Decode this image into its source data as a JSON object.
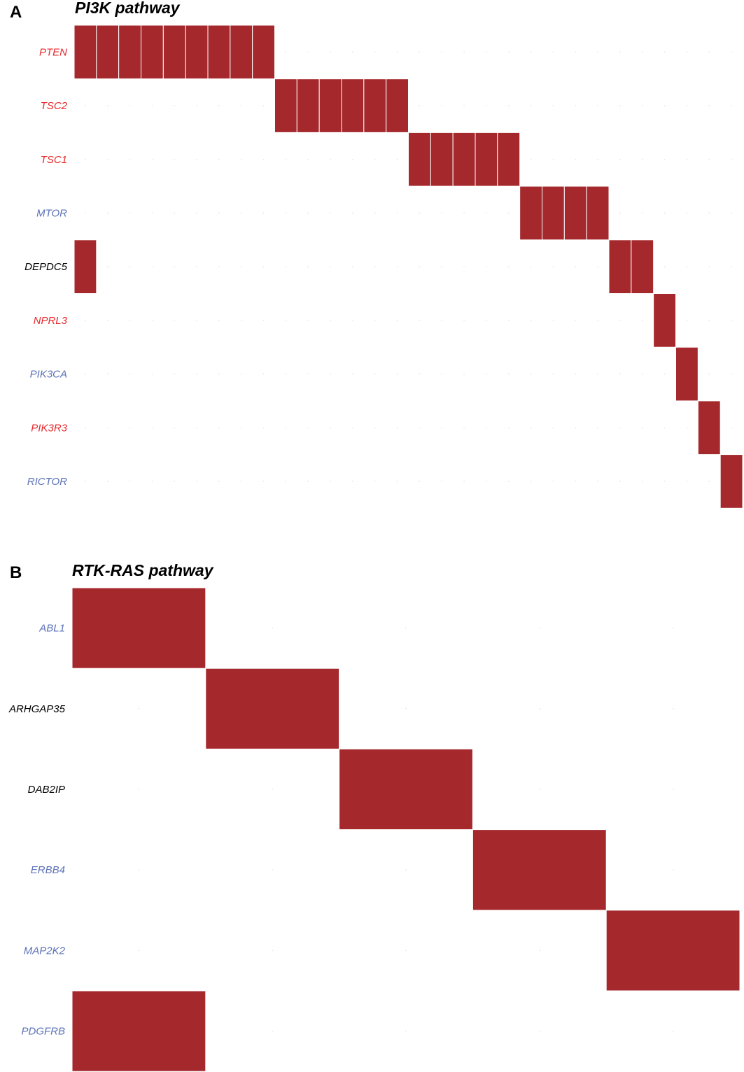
{
  "colors": {
    "mutation": "#a4282c",
    "cell_border": "#ffffff",
    "label_red": "#e8282c",
    "label_blue": "#5b72b8",
    "label_black": "#000000"
  },
  "chart_data": [
    {
      "type": "heatmap",
      "panel_label": "A",
      "title": "PI3K pathway",
      "n_samples": 30,
      "genes": [
        {
          "name": "PTEN",
          "label_color": "red",
          "mutated_samples": [
            1,
            2,
            3,
            4,
            5,
            6,
            7,
            8,
            9
          ]
        },
        {
          "name": "TSC2",
          "label_color": "red",
          "mutated_samples": [
            10,
            11,
            12,
            13,
            14,
            15
          ]
        },
        {
          "name": "TSC1",
          "label_color": "red",
          "mutated_samples": [
            16,
            17,
            18,
            19,
            20
          ]
        },
        {
          "name": "MTOR",
          "label_color": "blue",
          "mutated_samples": [
            21,
            22,
            23,
            24
          ]
        },
        {
          "name": "DEPDC5",
          "label_color": "black",
          "mutated_samples": [
            1,
            25,
            26
          ]
        },
        {
          "name": "NPRL3",
          "label_color": "red",
          "mutated_samples": [
            27
          ]
        },
        {
          "name": "PIK3CA",
          "label_color": "blue",
          "mutated_samples": [
            28
          ]
        },
        {
          "name": "PIK3R3",
          "label_color": "red",
          "mutated_samples": [
            29
          ]
        },
        {
          "name": "RICTOR",
          "label_color": "blue",
          "mutated_samples": [
            30
          ]
        }
      ]
    },
    {
      "type": "heatmap",
      "panel_label": "B",
      "title": "RTK-RAS pathway",
      "n_samples": 5,
      "genes": [
        {
          "name": "ABL1",
          "label_color": "blue",
          "mutated_samples": [
            1
          ]
        },
        {
          "name": "ARHGAP35",
          "label_color": "black",
          "mutated_samples": [
            2
          ]
        },
        {
          "name": "DAB2IP",
          "label_color": "black",
          "mutated_samples": [
            3
          ]
        },
        {
          "name": "ERBB4",
          "label_color": "blue",
          "mutated_samples": [
            4
          ]
        },
        {
          "name": "MAP2K2",
          "label_color": "blue",
          "mutated_samples": [
            5
          ]
        },
        {
          "name": "PDGFRB",
          "label_color": "blue",
          "mutated_samples": [
            1
          ]
        }
      ]
    }
  ]
}
